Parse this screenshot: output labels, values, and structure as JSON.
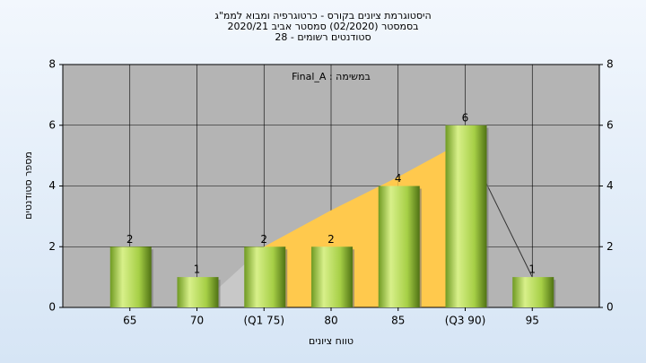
{
  "chart_data": {
    "type": "bar",
    "title_lines": [
      "היסטוגרמת ציונים בקורס - כרטוגרפיה ומבוא לממ\"ג",
      "בסמסטר  (02/2020)  סמסטר אביב 2020/21",
      "סטודנטים רשומים - 28"
    ],
    "annotation": "במשימה : Final_A",
    "x_label": "טווח ציונים",
    "y_label": "מספר סטודנטים",
    "categories": [
      "65",
      "70",
      "(Q1 75)",
      "80",
      "85",
      "(Q3 90)",
      "95"
    ],
    "values": [
      2,
      1,
      2,
      2,
      4,
      6,
      1
    ],
    "color": "#9ccc3c",
    "area": {
      "values": [
        null,
        0,
        2,
        3.2,
        4.3,
        5.5,
        1
      ],
      "color": "#ffc94d",
      "edge_color": "#c8c8c8",
      "fill_range": [
        2,
        5
      ]
    },
    "ylim": [
      0,
      8
    ],
    "yticks": [
      0,
      2,
      4,
      6,
      8
    ],
    "y2lim": [
      0,
      8
    ],
    "y2ticks": [
      0,
      2,
      4,
      6,
      8
    ],
    "grid": true
  }
}
